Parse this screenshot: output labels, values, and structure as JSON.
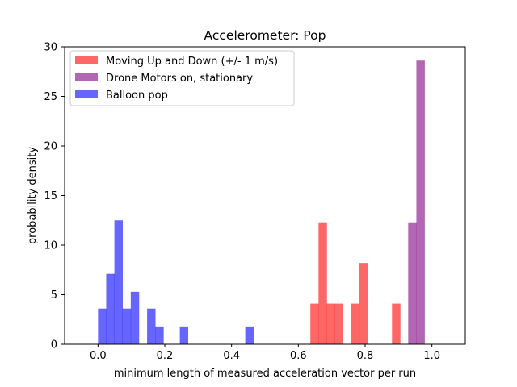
{
  "chart_data": {
    "type": "histogram",
    "title": "Accelerometer: Pop",
    "xlabel": "minimum length of measured acceleration vector per run",
    "ylabel": "probability density",
    "xlim": [
      -0.1,
      1.1
    ],
    "ylim": [
      0,
      30
    ],
    "xticks": [
      "0.0",
      "0.2",
      "0.4",
      "0.6",
      "0.8",
      "1.0"
    ],
    "xtick_values": [
      0.0,
      0.2,
      0.4,
      0.6,
      0.8,
      1.0
    ],
    "yticks": [
      "0",
      "5",
      "10",
      "15",
      "20",
      "25",
      "30"
    ],
    "ytick_values": [
      0,
      5,
      10,
      15,
      20,
      25,
      30
    ],
    "grid": false,
    "legend_position": "top-left",
    "bin_width": 0.0245,
    "series": [
      {
        "name": "Moving Up and Down (+/- 1 m/s)",
        "color": "#ff0000",
        "alpha": 0.6,
        "bins": [
          {
            "x0": 0.636,
            "h": 4.1
          },
          {
            "x0": 0.6605,
            "h": 12.3
          },
          {
            "x0": 0.685,
            "h": 4.1
          },
          {
            "x0": 0.7095,
            "h": 4.1
          },
          {
            "x0": 0.758,
            "h": 4.1
          },
          {
            "x0": 0.7825,
            "h": 8.2
          },
          {
            "x0": 0.8805,
            "h": 4.1
          }
        ]
      },
      {
        "name": "Drone Motors on, stationary",
        "color": "#800080",
        "alpha": 0.6,
        "bins": [
          {
            "x0": 0.929,
            "h": 12.3
          },
          {
            "x0": 0.9535,
            "h": 28.6
          }
        ]
      },
      {
        "name": "Balloon pop",
        "color": "#0000ff",
        "alpha": 0.6,
        "bins": [
          {
            "x0": 0.0,
            "h": 3.6
          },
          {
            "x0": 0.0245,
            "h": 7.1
          },
          {
            "x0": 0.049,
            "h": 12.5
          },
          {
            "x0": 0.0735,
            "h": 3.6
          },
          {
            "x0": 0.098,
            "h": 5.3
          },
          {
            "x0": 0.147,
            "h": 3.6
          },
          {
            "x0": 0.1715,
            "h": 1.8
          },
          {
            "x0": 0.245,
            "h": 1.8
          },
          {
            "x0": 0.441,
            "h": 1.8
          }
        ]
      }
    ]
  }
}
